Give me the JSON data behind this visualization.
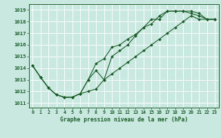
{
  "title": "Graphe pression niveau de la mer (hPa)",
  "bg_color": "#c8e8e0",
  "grid_color": "#ffffff",
  "line_color": "#1a5c28",
  "ylim": [
    1010.6,
    1019.5
  ],
  "yticks": [
    1011,
    1012,
    1013,
    1014,
    1015,
    1016,
    1017,
    1018,
    1019
  ],
  "line1": [
    1014.2,
    1013.2,
    1012.3,
    1011.7,
    1011.5,
    1011.5,
    1011.8,
    1013.0,
    1013.8,
    1013.0,
    1015.0,
    1015.5,
    1016.0,
    1016.8,
    1017.5,
    1018.2,
    1018.2,
    1018.9,
    1018.9,
    1018.9,
    1018.7,
    1018.5,
    1018.2,
    1018.2
  ],
  "line2": [
    1014.2,
    1013.2,
    1012.3,
    1011.7,
    1011.5,
    1011.5,
    1011.8,
    1013.0,
    1014.4,
    1014.8,
    1015.8,
    1016.0,
    1016.5,
    1016.9,
    1017.5,
    1017.8,
    1018.5,
    1018.9,
    1018.9,
    1018.9,
    1018.9,
    1018.7,
    1018.2,
    1018.2
  ],
  "line3": [
    1014.2,
    1013.2,
    1012.3,
    1011.7,
    1011.5,
    1011.5,
    1011.8,
    1012.0,
    1012.2,
    1013.0,
    1013.5,
    1014.0,
    1014.5,
    1015.0,
    1015.5,
    1016.0,
    1016.5,
    1017.0,
    1017.5,
    1018.0,
    1018.5,
    1018.2,
    1018.2,
    1018.2
  ]
}
